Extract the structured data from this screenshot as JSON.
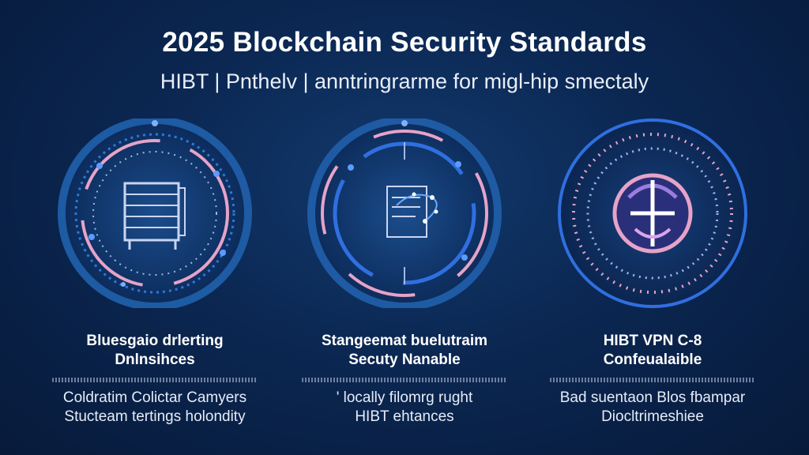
{
  "header": {
    "title": "2025 Blockchain Security Standards",
    "subtitle": "HIBT | Pnthelv | anntringrarme for migl-hip smectaly"
  },
  "cards": [
    {
      "icon": "server-rack-icon",
      "title_line1": "Bluesgaio drlerting",
      "title_line2": "Dnlnsihces",
      "text_line1": "Coldratim Colictar Camyers",
      "text_line2": "Stucteam tertings holondity"
    },
    {
      "icon": "document-network-icon",
      "title_line1": "Stangeemat buelutraim",
      "title_line2": "Secuty Nanable",
      "text_line1": "' locally filomrg rught",
      "text_line2": "HIBT ehtances"
    },
    {
      "icon": "shield-lock-icon",
      "title_line1": "HIBT VPN C-8",
      "title_line2": "Confeualaible",
      "text_line1": "Bad suentaon Blos fbampar",
      "text_line2": "Diocltrimeshiee"
    }
  ],
  "colors": {
    "background": "#0b2752",
    "ring_blue": "#2f6fe0",
    "ring_pink": "#e6a3c8",
    "accent_purple": "#9b7de0"
  }
}
